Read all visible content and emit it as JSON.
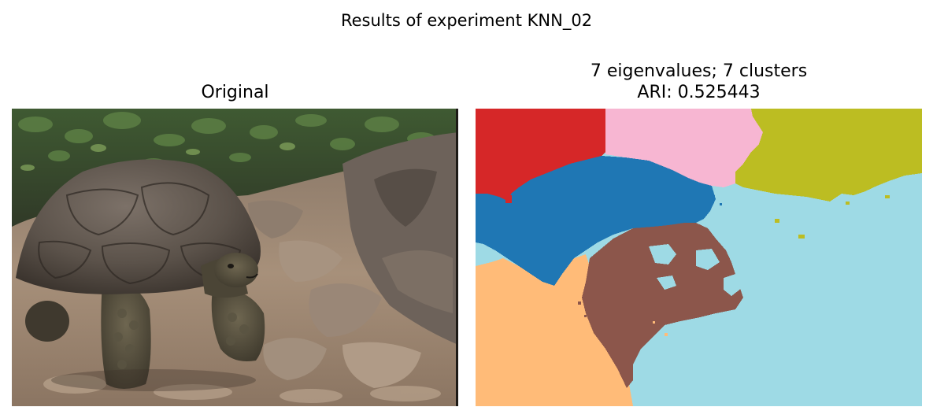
{
  "figure": {
    "suptitle": "Results of experiment KNN_02"
  },
  "left_panel": {
    "title": "Original"
  },
  "right_panel": {
    "title_line1": "7 eigenvalues; 7 clusters",
    "title_line2": "ARI: 0.525443",
    "palette": {
      "cluster_red": "#d62728",
      "cluster_pink": "#f7b6d2",
      "cluster_olive": "#bcbd22",
      "cluster_blue": "#1f77b4",
      "cluster_lightblue": "#9edae5",
      "cluster_brown": "#8c564b",
      "cluster_peach": "#ffbb78"
    }
  }
}
